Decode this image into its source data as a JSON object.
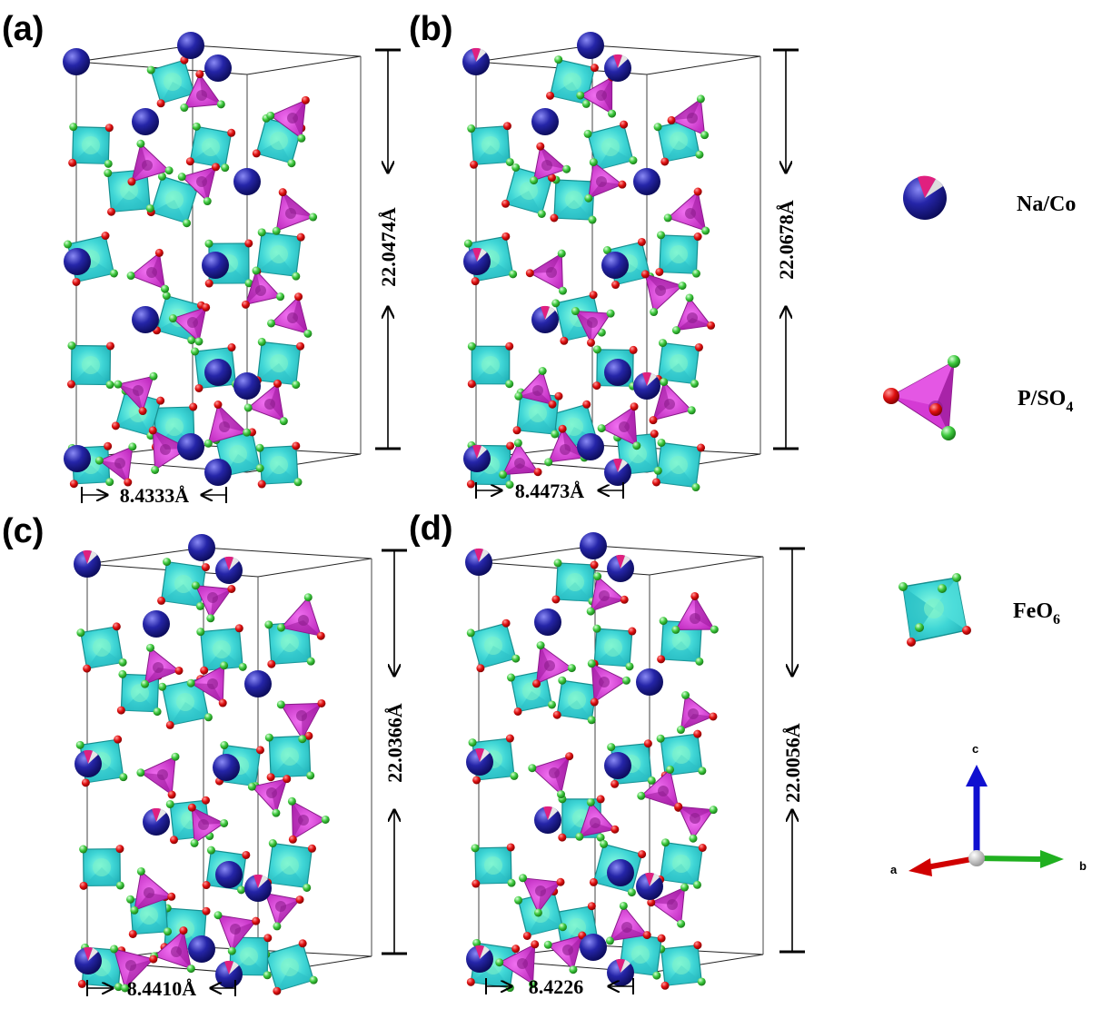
{
  "panels": [
    {
      "label": "(a)",
      "c_length": "22.0474Å",
      "a_length": "8.4333Å"
    },
    {
      "label": "(b)",
      "c_length": "22.0678Å",
      "a_length": "8.4473Å"
    },
    {
      "label": "(c)",
      "c_length": "22.0366Å",
      "a_length": "8.4410Å"
    },
    {
      "label": "(d)",
      "c_length": "22.0056Å",
      "a_length": "8.4226"
    }
  ],
  "legend": {
    "na_co": "Na/Co",
    "pso4_main": "P/SO",
    "pso4_sub": "4",
    "feo6_main": "FeO",
    "feo6_sub": "6"
  },
  "axes": {
    "a": "a",
    "b": "b",
    "c": "c"
  },
  "colors": {
    "na_sphere": "#1a1a8c",
    "na_highlight": "#6d6df0",
    "co_wedge": "#e0207f",
    "feo6_octahedron": "#35d2d2",
    "feo6_edge": "#168f8f",
    "pso4_tetrahedron": "#d43ad4",
    "oxygen_red": "#e01010",
    "oxygen_green": "#3ec93e",
    "axis_a": "#d00000",
    "axis_b": "#20b020",
    "axis_c": "#1010d0",
    "axis_origin": "#b0b0b0"
  }
}
